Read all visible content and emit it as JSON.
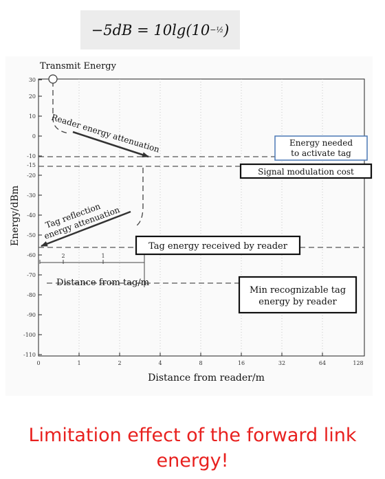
{
  "formula": {
    "lhs": "−5dB = 10lg(10",
    "exponent": "−½",
    "close": ")"
  },
  "diagram": {
    "y_axis_label": "Energy/dBm",
    "x_axis_label": "Distance from reader/m",
    "y_ticks": [
      "30",
      "20",
      "10",
      "0",
      "-10",
      "-15",
      "-20",
      "-30",
      "-40",
      "-50",
      "-60",
      "-70",
      "-80",
      "-90",
      "-100",
      "-110"
    ],
    "x_ticks": [
      "0",
      "1",
      "2",
      "4",
      "8",
      "16",
      "32",
      "64",
      "128"
    ],
    "inset_ticks": [
      "2",
      "1"
    ],
    "labels": {
      "transmit_energy": "Transmit Energy",
      "reader_attenuation": "Reader energy attenuation",
      "tag_reflection_1": "Tag reflection",
      "tag_reflection_2": "energy attenuation",
      "distance_from_tag": "Distance from tag/m"
    },
    "boxes": {
      "energy_needed_1": "Energy needed",
      "energy_needed_2": "to activate tag",
      "signal_modulation": "Signal modulation cost",
      "tag_received": "Tag energy received by reader",
      "min_recognizable_1": "Min recognizable tag",
      "min_recognizable_2": "energy by reader"
    },
    "colors": {
      "energy_needed_box_border": "#4a78b5",
      "arrow": "#333333",
      "dashed_line": "#555555"
    }
  },
  "caption": {
    "line1": "Limitation effect of the forward link",
    "line2": "energy!"
  }
}
